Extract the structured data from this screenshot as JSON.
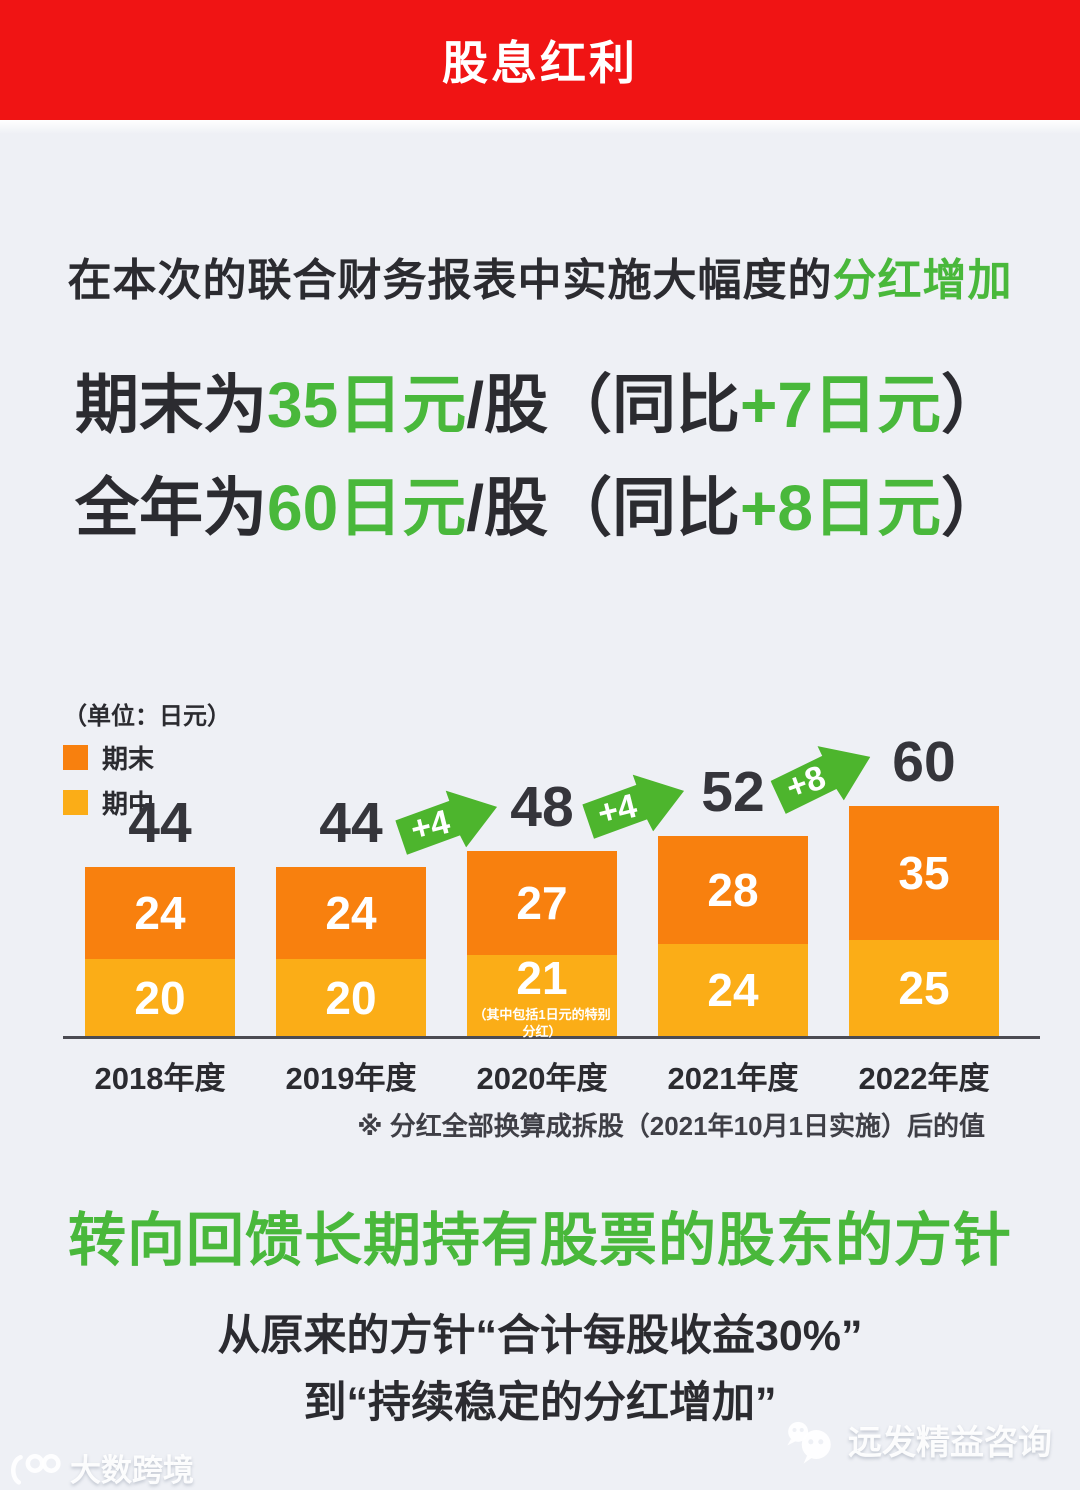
{
  "header": {
    "title": "股息红利"
  },
  "intro": {
    "prefix": "在本次的联合财务报表中实施大幅度的",
    "highlight": "分红增加"
  },
  "headline_final": {
    "p1": "期末为",
    "p2": "35日元",
    "p3": "/股（同比",
    "p4": "+7日元",
    "p5": "）"
  },
  "headline_annual": {
    "p1": "全年为",
    "p2": "60日元",
    "p3": "/股（同比",
    "p4": "+8日元",
    "p5": "）"
  },
  "chart_data": {
    "type": "bar",
    "stacked": true,
    "unit_label": "（单位：日元）",
    "legend": [
      {
        "label": "期末",
        "color": "#F8800E"
      },
      {
        "label": "期中",
        "color": "#FBAD17"
      }
    ],
    "categories": [
      "2018年度",
      "2019年度",
      "2020年度",
      "2021年度",
      "2022年度"
    ],
    "series": [
      {
        "name": "期末",
        "values": [
          24,
          24,
          27,
          28,
          35
        ]
      },
      {
        "name": "期中",
        "values": [
          20,
          20,
          21,
          24,
          25
        ]
      }
    ],
    "totals": [
      44,
      44,
      48,
      52,
      60
    ],
    "arrows": [
      {
        "label": "+4",
        "between": [
          "2019年度",
          "2020年度"
        ]
      },
      {
        "label": "+4",
        "between": [
          "2020年度",
          "2021年度"
        ]
      },
      {
        "label": "+8",
        "between": [
          "2021年度",
          "2022年度"
        ]
      }
    ],
    "bar_note_2020": "（其中包括1日元的特别分红）",
    "footnote": "※ 分红全部换算成拆股（2021年10月1日实施）后的值",
    "ylim": [
      0,
      60
    ],
    "grid": false,
    "legend_position": "top-left"
  },
  "policy": {
    "heading": "转向回馈长期持有股票的股东的方针",
    "line1": "从原来的方针“合计每股收益30%”",
    "line2": "到“持续稳定的分红增加”"
  },
  "watermarks": {
    "left_brand": "大数跨境",
    "right_brand": "远发精益咨询"
  },
  "colors": {
    "header_red": "#F01414",
    "text_dark": "#2B2B30",
    "green_text": "#49B83B",
    "arrow_green": "#4DB52D",
    "orange": "#F8800E",
    "amber": "#FBAD17",
    "background": "#EEF0F5"
  }
}
